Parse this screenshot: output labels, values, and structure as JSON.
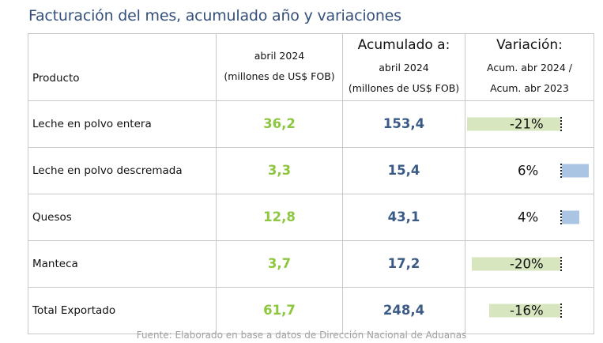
{
  "title": "Facturación del mes, acumulado año y variaciones",
  "headers": {
    "producto": "Producto",
    "mes_line1": "abril 2024",
    "mes_line2": "(millones de US$ FOB)",
    "acum_title": "Acumulado a:",
    "acum_line1": "abril 2024",
    "acum_line2": "(millones de US$ FOB)",
    "var_title": "Variación:",
    "var_line1": "Acum. abr 2024 /",
    "var_line2": "Acum. abr 2023"
  },
  "rows": [
    {
      "producto": "Leche en polvo entera",
      "mes": "36,2",
      "acumulado": "153,4",
      "variacion": "-21%",
      "variacion_pct": -21
    },
    {
      "producto": "Leche en polvo descremada",
      "mes": "3,3",
      "acumulado": "15,4",
      "variacion": "6%",
      "variacion_pct": 6
    },
    {
      "producto": "Quesos",
      "mes": "12,8",
      "acumulado": "43,1",
      "variacion": "4%",
      "variacion_pct": 4
    },
    {
      "producto": "Manteca",
      "mes": "3,7",
      "acumulado": "17,2",
      "variacion": "-20%",
      "variacion_pct": -20
    },
    {
      "producto": "Total Exportado",
      "mes": "61,7",
      "acumulado": "248,4",
      "variacion": "-16%",
      "variacion_pct": -16
    }
  ],
  "colors": {
    "title": "#34507a",
    "mes_values": "#8dc63f",
    "acumulado_values": "#3b5b86",
    "negative_bar": "#d8e6c0",
    "positive_bar": "#a9c5e3"
  },
  "source": "Fuente: Elaborado en base a datos de Dirección Nacional de Aduanas"
}
